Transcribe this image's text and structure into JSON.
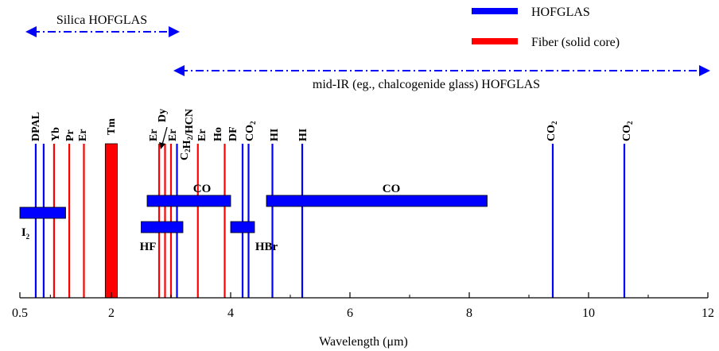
{
  "chart_data": {
    "type": "bar",
    "xlabel": "Wavelength (μm)",
    "xlim": [
      0.5,
      12
    ],
    "xticks": [
      "0.5",
      "2",
      "4",
      "6",
      "8",
      "10",
      "12"
    ],
    "legend": {
      "placement": "top-right",
      "entries": [
        {
          "name": "HOFGLAS",
          "color": "#0000ff"
        },
        {
          "name": "Fiber (solid core)",
          "color": "#ff0000"
        }
      ]
    },
    "ranges": [
      {
        "label": "Silica HOFGLAS",
        "x": [
          0.5,
          3.1
        ]
      },
      {
        "label": "mid-IR (eg., chalcogenide glass) HOFGLAS",
        "x": [
          3.1,
          12.0
        ]
      }
    ],
    "lines": [
      {
        "label": "DPAL",
        "x": 0.76,
        "kind": "HOFGLAS"
      },
      {
        "label": "",
        "x": 0.89,
        "kind": "HOFGLAS"
      },
      {
        "label": "Yb",
        "x": 1.06,
        "kind": "Fiber (solid core)"
      },
      {
        "label": "Pr",
        "x": 1.31,
        "kind": "Fiber (solid core)"
      },
      {
        "label": "Er",
        "x": 1.55,
        "kind": "Fiber (solid core)"
      },
      {
        "label": "Er",
        "x": 2.8,
        "kind": "Fiber (solid core)"
      },
      {
        "label": "Dy",
        "x": 2.9,
        "kind": "Fiber (solid core)"
      },
      {
        "label": "Er",
        "x": 3.0,
        "kind": "Fiber (solid core)"
      },
      {
        "label": "C2H2/HCN",
        "x": 3.1,
        "kind": "HOFGLAS"
      },
      {
        "label": "Er",
        "x": 3.45,
        "kind": "Fiber (solid core)"
      },
      {
        "label": "Ho",
        "x": 3.9,
        "kind": "Fiber (solid core)"
      },
      {
        "label": "DF",
        "x": 4.2,
        "kind": "HOFGLAS"
      },
      {
        "label": "CO2",
        "x": 4.3,
        "kind": "HOFGLAS"
      },
      {
        "label": "HI",
        "x": 4.7,
        "kind": "HOFGLAS"
      },
      {
        "label": "HI",
        "x": 5.2,
        "kind": "HOFGLAS"
      },
      {
        "label": "CO2",
        "x": 9.4,
        "kind": "HOFGLAS"
      },
      {
        "label": "CO2",
        "x": 10.6,
        "kind": "HOFGLAS"
      }
    ],
    "bands": [
      {
        "label": "Tm",
        "x": [
          1.9,
          2.1
        ],
        "kind": "Fiber (solid core)"
      },
      {
        "label": "I2",
        "x": [
          0.5,
          1.25
        ],
        "kind": "HOFGLAS"
      },
      {
        "label": "CO",
        "x": [
          2.6,
          4.0
        ],
        "kind": "HOFGLAS"
      },
      {
        "label": "HF",
        "x": [
          2.5,
          3.2
        ],
        "kind": "HOFGLAS"
      },
      {
        "label": "HBr",
        "x": [
          4.0,
          4.4
        ],
        "kind": "HOFGLAS"
      },
      {
        "label": "CO",
        "x": [
          4.6,
          8.3
        ],
        "kind": "HOFGLAS"
      }
    ]
  }
}
